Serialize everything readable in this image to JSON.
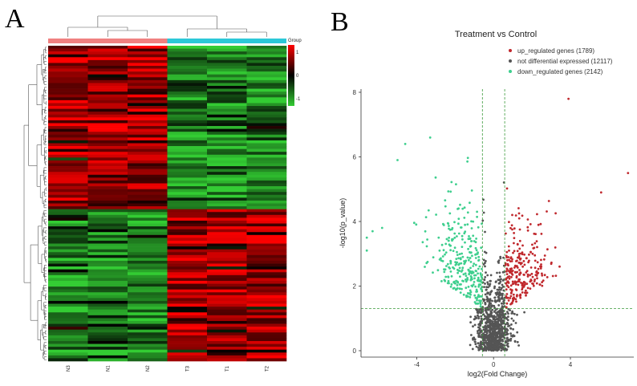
{
  "panels": {
    "a_label": "A",
    "b_label": "B"
  },
  "chart_data": [
    {
      "type": "heatmap",
      "samples": [
        "N3",
        "N1",
        "N2",
        "T3",
        "T1",
        "T2"
      ],
      "group_title": "Group",
      "colorbar_ticks": [
        {
          "label": "1",
          "value": 1
        },
        {
          "label": "0",
          "value": 0
        },
        {
          "label": "-1",
          "value": -1
        }
      ],
      "group_colors": {
        "normal": "#f08080",
        "tumor": "#2cc8d8"
      },
      "color_low": "#33cc33",
      "color_mid": "#000000",
      "color_high": "#ff0000",
      "upper_block": {
        "normal_mean": 0.8,
        "tumor_mean": -0.8
      },
      "lower_block": {
        "normal_mean": -0.8,
        "tumor_mean": 0.7
      },
      "upper_block_fraction": 0.52
    },
    {
      "type": "scatter",
      "title": "Treatment vs Control",
      "xlabel": "log2(Fold Change)",
      "ylabel": "-log10(p_value)",
      "xlim": [
        -6.9,
        7.3
      ],
      "ylim": [
        -0.2,
        8.1
      ],
      "xticks": [
        -4,
        0,
        4
      ],
      "yticks": [
        0,
        2,
        4,
        6,
        8
      ],
      "thresholds": {
        "fc_left": -0.58,
        "fc_right": 0.58,
        "p_line": 1.3
      },
      "series": [
        {
          "name": "up_regulated genes (1789)",
          "count": 1789,
          "color": "#c0282d"
        },
        {
          "name": "not differential expressed (12117)",
          "count": 12117,
          "color": "#555555"
        },
        {
          "name": "down_regulated genes (2142)",
          "count": 2142,
          "color": "#3ecf8e"
        }
      ],
      "outliers": [
        {
          "x": 3.9,
          "y": 7.8,
          "series": 0
        },
        {
          "x": 7.0,
          "y": 5.5,
          "series": 0
        },
        {
          "x": 5.6,
          "y": 4.9,
          "series": 0
        },
        {
          "x": -4.6,
          "y": 6.4,
          "series": 2
        },
        {
          "x": -3.3,
          "y": 6.6,
          "series": 2
        },
        {
          "x": -5.0,
          "y": 5.9,
          "series": 2
        },
        {
          "x": -6.6,
          "y": 3.5,
          "series": 2
        },
        {
          "x": -6.6,
          "y": 3.1,
          "series": 2
        },
        {
          "x": -6.3,
          "y": 3.7,
          "series": 2
        },
        {
          "x": -5.8,
          "y": 3.8,
          "series": 2
        }
      ]
    }
  ]
}
